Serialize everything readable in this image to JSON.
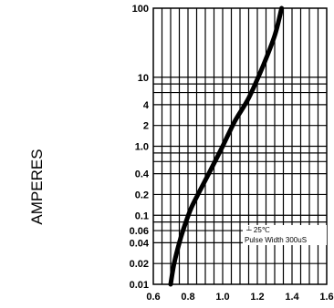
{
  "chart_data": {
    "type": "line",
    "title": "",
    "xlabel": "",
    "ylabel": "AMPERES",
    "x_scale": "linear",
    "y_scale": "log",
    "xlim": [
      0.6,
      1.6
    ],
    "ylim": [
      0.01,
      100
    ],
    "grid": true,
    "x_ticks": [
      0.6,
      0.8,
      1.0,
      1.2,
      1.4,
      1.6
    ],
    "x_tick_labels": [
      "0.6",
      "0.8",
      "1.0",
      "1.2",
      "1.4",
      "1.6"
    ],
    "y_ticks": [
      100,
      10,
      4,
      2,
      1.0,
      0.4,
      0.2,
      0.1,
      0.06,
      0.04,
      0.02,
      0.01
    ],
    "y_tick_labels": [
      "100",
      "10",
      "4",
      "2",
      "1.0",
      "0.4",
      "0.2",
      "0.1",
      "0.06",
      "0.04",
      "0.02",
      "0.01"
    ],
    "extra_grid_y": [
      8,
      6,
      0.8,
      0.6,
      0.08
    ],
    "annotations": [
      "┴ 25℃",
      "Pulse Width  300uS"
    ],
    "series": [
      {
        "x": [
          0.7,
          0.72,
          0.75,
          0.78,
          0.82,
          0.87,
          0.93,
          1.0,
          1.07,
          1.15,
          1.23,
          1.3,
          1.34
        ],
        "y": [
          0.01,
          0.02,
          0.04,
          0.07,
          0.13,
          0.23,
          0.45,
          1.0,
          2.3,
          5.0,
          14,
          40,
          100
        ]
      }
    ],
    "colors": {
      "line": "#000000",
      "grid": "#000000"
    }
  }
}
